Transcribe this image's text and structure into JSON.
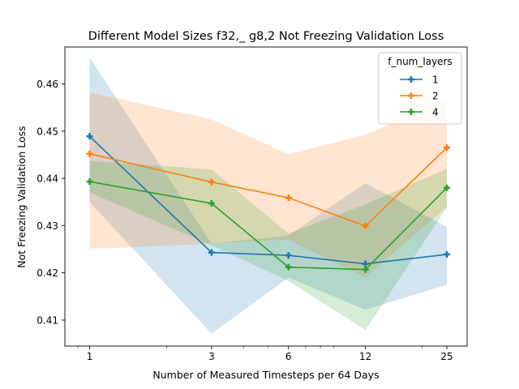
{
  "chart_data": {
    "type": "line",
    "title": "Different Model Sizes f32,_ g8,2 Not Freezing Validation Loss",
    "xlabel": "Number of Measured Timesteps per 64 Days",
    "ylabel": "Not Freezing Validation Loss",
    "xscale": "log",
    "xlim": [
      0.8,
      30
    ],
    "ylim": [
      0.4045,
      0.4678
    ],
    "x": [
      1,
      3,
      6,
      12,
      25
    ],
    "xticks": [
      "1",
      "3",
      "6",
      "12",
      "25"
    ],
    "yticks": [
      0.41,
      0.42,
      0.43,
      0.44,
      0.45,
      0.46
    ],
    "legend": {
      "title": "f_num_layers",
      "location": "top-right"
    },
    "series": [
      {
        "name": "1",
        "color": "#1f77b4",
        "values": [
          0.4489,
          0.4243,
          0.4237,
          0.4219,
          0.4239
        ],
        "band_upper": [
          0.4656,
          0.4262,
          0.4279,
          0.439,
          0.4297
        ],
        "band_lower": [
          0.435,
          0.4071,
          0.419,
          0.4122,
          0.4175
        ]
      },
      {
        "name": "2",
        "color": "#ff7f0e",
        "values": [
          0.4452,
          0.4392,
          0.4359,
          0.4299,
          0.4465
        ],
        "band_upper": [
          0.4582,
          0.4525,
          0.4451,
          0.4492,
          0.457
        ],
        "band_lower": [
          0.425,
          0.4262,
          0.427,
          0.419,
          0.434
        ]
      },
      {
        "name": "4",
        "color": "#2ca02c",
        "values": [
          0.4393,
          0.4347,
          0.4212,
          0.4207,
          0.438
        ],
        "band_upper": [
          0.4437,
          0.4419,
          0.4283,
          0.4345,
          0.442
        ],
        "band_lower": [
          0.437,
          0.4258,
          0.4183,
          0.4079,
          0.4338
        ]
      }
    ]
  }
}
